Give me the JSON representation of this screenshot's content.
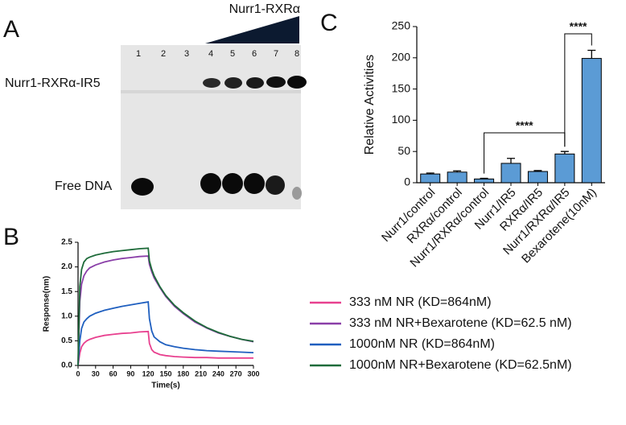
{
  "panel_labels": [
    "A",
    "B",
    "C"
  ],
  "gel": {
    "lanes": [
      "1",
      "2",
      "3",
      "4",
      "5",
      "6",
      "7",
      "8"
    ],
    "gradient_label": "Nurr1-RXRα",
    "band_labels": [
      "Nurr1-RXRα-IR5",
      "Free DNA"
    ]
  },
  "chart_data": [
    {
      "type": "line",
      "xlabel": "Time(s)",
      "ylabel": "Response(nm)",
      "x": [
        0,
        3,
        6,
        10,
        15,
        20,
        30,
        45,
        60,
        75,
        90,
        105,
        120,
        122,
        126,
        130,
        140,
        150,
        165,
        180,
        200,
        220,
        240,
        260,
        280,
        300
      ],
      "xlim": [
        0,
        300
      ],
      "xticks": [
        0,
        30,
        60,
        90,
        120,
        150,
        180,
        210,
        240,
        270,
        300
      ],
      "ylim": [
        0,
        2.5
      ],
      "yticks": [
        {
          "value": 0,
          "label": "0.0"
        },
        0.5,
        {
          "value": 1,
          "label": "1.0"
        },
        1.5,
        {
          "value": 2,
          "label": "2.0"
        },
        2.5
      ],
      "series": [
        {
          "name": "333 nM NR (KD=864nM)",
          "color": "#e8408f",
          "values": [
            0,
            0.25,
            0.38,
            0.45,
            0.5,
            0.53,
            0.57,
            0.61,
            0.63,
            0.65,
            0.66,
            0.68,
            0.69,
            0.45,
            0.32,
            0.27,
            0.22,
            0.2,
            0.18,
            0.17,
            0.16,
            0.16,
            0.15,
            0.15,
            0.15,
            0.15
          ]
        },
        {
          "name": "333 nM NR+Bexarotene (KD=62.5 nM)",
          "color": "#8a3fa8",
          "values": [
            0,
            1.3,
            1.65,
            1.82,
            1.92,
            1.98,
            2.04,
            2.1,
            2.14,
            2.17,
            2.19,
            2.21,
            2.22,
            2.05,
            1.9,
            1.78,
            1.58,
            1.4,
            1.2,
            1.05,
            0.88,
            0.76,
            0.66,
            0.59,
            0.53,
            0.48
          ]
        },
        {
          "name": "1000nM NR (KD=864nM)",
          "color": "#1f5fbf",
          "values": [
            0,
            0.5,
            0.75,
            0.88,
            0.95,
            1.0,
            1.06,
            1.12,
            1.16,
            1.2,
            1.23,
            1.26,
            1.29,
            0.95,
            0.7,
            0.58,
            0.48,
            0.42,
            0.38,
            0.35,
            0.32,
            0.3,
            0.29,
            0.28,
            0.27,
            0.26
          ]
        },
        {
          "name": "1000nM NR+Bexarotene (KD=62.5nM)",
          "color": "#1e6b3a",
          "values": [
            0,
            1.6,
            1.95,
            2.1,
            2.17,
            2.2,
            2.24,
            2.28,
            2.31,
            2.33,
            2.35,
            2.37,
            2.38,
            2.12,
            1.95,
            1.82,
            1.6,
            1.42,
            1.22,
            1.07,
            0.9,
            0.77,
            0.67,
            0.59,
            0.53,
            0.49
          ]
        }
      ]
    },
    {
      "type": "bar",
      "ylabel": "Relative Activities",
      "categories": [
        "Nurr1/control",
        "RXRα/control",
        "Nurr1/RXRα/control",
        "Nurr1/IR5",
        "RXRα/IR5",
        "Nurr1/RXRα/IR5",
        "Bexarotene(10nM)"
      ],
      "values": [
        14,
        17,
        6,
        31,
        18,
        46,
        199
      ],
      "errors": [
        1.5,
        2,
        1,
        8,
        1.5,
        4,
        13
      ],
      "color": "#5b9bd5",
      "ylim": [
        0,
        250
      ],
      "yticks": [
        0,
        50,
        100,
        150,
        200,
        250
      ],
      "annotations": [
        "****",
        "****"
      ]
    }
  ]
}
